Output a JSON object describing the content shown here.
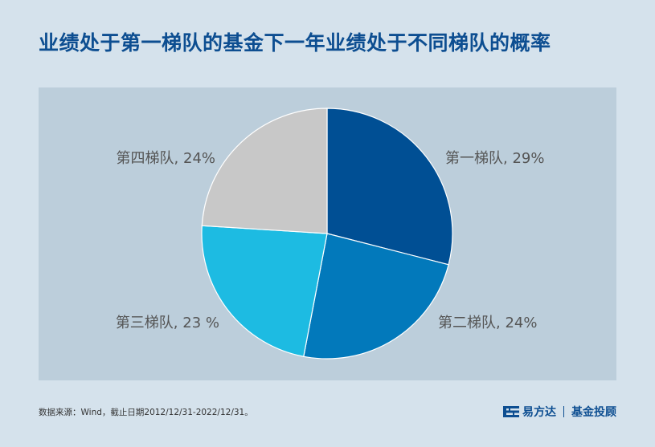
{
  "title": "业绩处于第一梯队的基金下一年业绩处于不同梯队的概率",
  "source": "数据来源：Wind，截止日期2012/12/31-2022/12/31。",
  "brand": {
    "name": "易方达",
    "sub": "基金投顾",
    "logo_icon": "efund-logo-icon"
  },
  "chart_data": {
    "type": "pie",
    "start_angle_deg": 0,
    "direction": "clockwise",
    "slices": [
      {
        "name": "第一梯队",
        "value": 29,
        "label": "第一梯队, 29%",
        "color": "#004f94"
      },
      {
        "name": "第二梯队",
        "value": 24,
        "label": "第二梯队, 24%",
        "color": "#0279bb"
      },
      {
        "name": "第三梯队",
        "value": 23,
        "label": "第三梯队, 23 %",
        "color": "#1dbbe2"
      },
      {
        "name": "第四梯队",
        "value": 24,
        "label": "第四梯队, 24%",
        "color": "#c8c8c8"
      }
    ]
  }
}
